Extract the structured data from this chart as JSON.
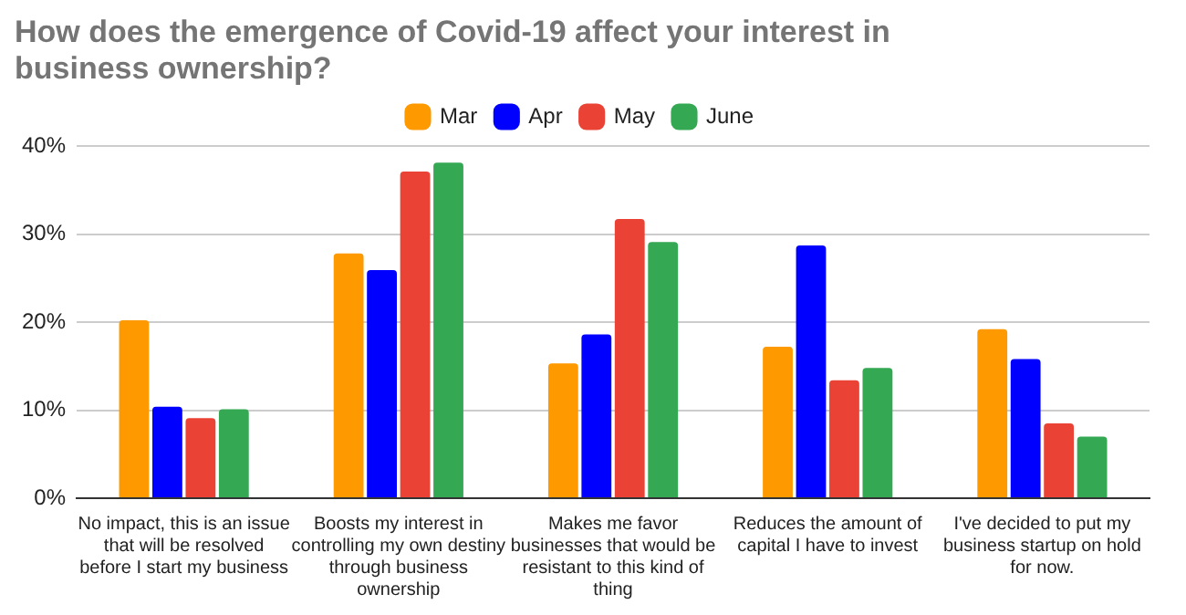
{
  "chart_data": {
    "type": "bar",
    "title": "How does the emergence of Covid-19 affect your interest in business ownership?",
    "categories": [
      "No impact, this is an issue that will be resolved before I start my business",
      "Boosts my interest in controlling my own destiny through business ownership",
      "Makes me favor businesses that would be resistant to this kind of thing",
      "Reduces the amount of capital I have to invest",
      "I've decided to put my business startup on hold for now."
    ],
    "series": [
      {
        "name": "Mar",
        "color": "#ff9900",
        "values": [
          20.2,
          27.8,
          15.3,
          17.2,
          19.2
        ]
      },
      {
        "name": "Apr",
        "color": "#0000ff",
        "values": [
          10.4,
          25.9,
          18.6,
          28.7,
          15.8
        ]
      },
      {
        "name": "May",
        "color": "#ea4335",
        "values": [
          9.1,
          37.1,
          31.7,
          13.4,
          8.5
        ]
      },
      {
        "name": "June",
        "color": "#34a853",
        "values": [
          10.1,
          38.1,
          29.1,
          14.8,
          7.0
        ]
      }
    ],
    "ylim": [
      0,
      40
    ],
    "yticks": [
      {
        "value": 0,
        "label": "0%"
      },
      {
        "value": 10,
        "label": "10%"
      },
      {
        "value": 20,
        "label": "20%"
      },
      {
        "value": 30,
        "label": "30%"
      },
      {
        "value": 40,
        "label": "40%"
      }
    ],
    "grid": "y",
    "legend": "top"
  }
}
